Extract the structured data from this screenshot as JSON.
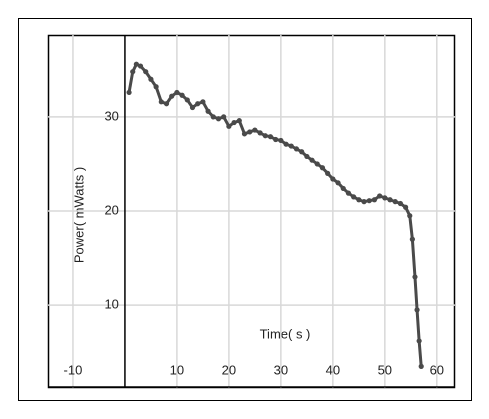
{
  "chart_data": {
    "type": "line",
    "x_label": "Time( s )",
    "y_label": "Power( mWatts )",
    "x": [
      0.8,
      1.5,
      2.2,
      3,
      4,
      5,
      6,
      7,
      8,
      9,
      10,
      11,
      12,
      13,
      14,
      15,
      16,
      17,
      18,
      19,
      20,
      21,
      22,
      23,
      24,
      25,
      26,
      27,
      28,
      29,
      30,
      31,
      32,
      33,
      34,
      35,
      36,
      37,
      38,
      39,
      40,
      41,
      42,
      43,
      44,
      45,
      46,
      47,
      48,
      49,
      50,
      51,
      52,
      53,
      54,
      54.8,
      55.3,
      55.8,
      56.2,
      56.6,
      57
    ],
    "values": [
      32.6,
      34.8,
      35.6,
      35.4,
      34.8,
      34,
      33.2,
      31.6,
      31.4,
      32.2,
      32.6,
      32.3,
      31.8,
      31,
      31.4,
      31.6,
      30.6,
      30,
      29.8,
      30,
      29,
      29.4,
      29.6,
      28.2,
      28.4,
      28.6,
      28.3,
      28,
      27.9,
      27.6,
      27.5,
      27.1,
      26.9,
      26.6,
      26.3,
      25.8,
      25.4,
      25,
      24.6,
      24,
      23.4,
      23,
      22.4,
      21.9,
      21.5,
      21.2,
      21,
      21.1,
      21.2,
      21.6,
      21.4,
      21.2,
      21,
      20.8,
      20.4,
      19.5,
      17,
      13,
      9.5,
      6.2,
      3.5
    ],
    "color": "#4a4a4a",
    "xlim": [
      -14.8,
      63.5
    ],
    "ylim": [
      1.2,
      38.7
    ],
    "xticks": [
      -10,
      10,
      20,
      30,
      40,
      50,
      60
    ],
    "yticks": [
      10,
      20,
      30
    ],
    "grid": true
  }
}
